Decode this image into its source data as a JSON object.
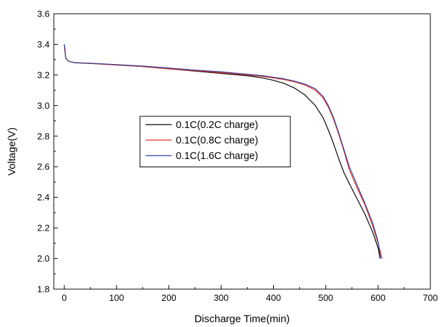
{
  "chart_data": {
    "type": "line",
    "title": "",
    "xlabel": "Discharge Time(min)",
    "ylabel": "Voltage(V)",
    "xlim": [
      -20,
      700
    ],
    "ylim": [
      1.8,
      3.6
    ],
    "x_ticks": [
      0,
      100,
      200,
      300,
      400,
      500,
      600,
      700
    ],
    "y_ticks": [
      1.8,
      2.0,
      2.2,
      2.4,
      2.6,
      2.8,
      3.0,
      3.2,
      3.4,
      3.6
    ],
    "x_tick_labels": [
      "0",
      "100",
      "200",
      "300",
      "400",
      "500",
      "600",
      "700"
    ],
    "y_tick_labels": [
      "1.8",
      "2.0",
      "2.2",
      "2.4",
      "2.6",
      "2.8",
      "3.0",
      "3.2",
      "3.4",
      "3.6"
    ],
    "grid": false,
    "legend_position": "center-left",
    "series": [
      {
        "name": "0.1C(0.2C charge)",
        "color": "#000000",
        "points": [
          [
            0,
            3.4
          ],
          [
            3,
            3.31
          ],
          [
            8,
            3.29
          ],
          [
            20,
            3.28
          ],
          [
            50,
            3.275
          ],
          [
            100,
            3.265
          ],
          [
            150,
            3.255
          ],
          [
            200,
            3.24
          ],
          [
            250,
            3.225
          ],
          [
            300,
            3.21
          ],
          [
            350,
            3.195
          ],
          [
            380,
            3.18
          ],
          [
            400,
            3.165
          ],
          [
            420,
            3.145
          ],
          [
            440,
            3.115
          ],
          [
            460,
            3.07
          ],
          [
            480,
            3.0
          ],
          [
            495,
            2.92
          ],
          [
            505,
            2.84
          ],
          [
            515,
            2.75
          ],
          [
            525,
            2.65
          ],
          [
            535,
            2.56
          ],
          [
            545,
            2.49
          ],
          [
            560,
            2.39
          ],
          [
            575,
            2.29
          ],
          [
            590,
            2.17
          ],
          [
            600,
            2.07
          ],
          [
            604,
            2.0
          ]
        ]
      },
      {
        "name": "0.1C(0.8C charge)",
        "color": "#e8312a",
        "points": [
          [
            0,
            3.38
          ],
          [
            3,
            3.31
          ],
          [
            8,
            3.29
          ],
          [
            20,
            3.28
          ],
          [
            50,
            3.275
          ],
          [
            100,
            3.265
          ],
          [
            150,
            3.255
          ],
          [
            200,
            3.24
          ],
          [
            250,
            3.228
          ],
          [
            300,
            3.215
          ],
          [
            350,
            3.2
          ],
          [
            380,
            3.19
          ],
          [
            400,
            3.18
          ],
          [
            420,
            3.17
          ],
          [
            440,
            3.155
          ],
          [
            460,
            3.135
          ],
          [
            480,
            3.1
          ],
          [
            495,
            3.05
          ],
          [
            505,
            2.99
          ],
          [
            515,
            2.91
          ],
          [
            525,
            2.81
          ],
          [
            535,
            2.7
          ],
          [
            545,
            2.58
          ],
          [
            560,
            2.46
          ],
          [
            575,
            2.35
          ],
          [
            590,
            2.21
          ],
          [
            600,
            2.1
          ],
          [
            608,
            2.0
          ]
        ]
      },
      {
        "name": "0.1C(1.6C charge)",
        "color": "#2b3a97",
        "points": [
          [
            0,
            3.4
          ],
          [
            3,
            3.31
          ],
          [
            8,
            3.29
          ],
          [
            20,
            3.28
          ],
          [
            50,
            3.277
          ],
          [
            100,
            3.268
          ],
          [
            150,
            3.258
          ],
          [
            200,
            3.245
          ],
          [
            250,
            3.232
          ],
          [
            300,
            3.22
          ],
          [
            350,
            3.205
          ],
          [
            380,
            3.195
          ],
          [
            400,
            3.185
          ],
          [
            420,
            3.175
          ],
          [
            440,
            3.16
          ],
          [
            460,
            3.14
          ],
          [
            480,
            3.11
          ],
          [
            495,
            3.06
          ],
          [
            505,
            3.0
          ],
          [
            515,
            2.92
          ],
          [
            525,
            2.82
          ],
          [
            535,
            2.71
          ],
          [
            545,
            2.6
          ],
          [
            560,
            2.48
          ],
          [
            575,
            2.36
          ],
          [
            590,
            2.23
          ],
          [
            600,
            2.11
          ],
          [
            605,
            2.0
          ]
        ]
      }
    ]
  }
}
